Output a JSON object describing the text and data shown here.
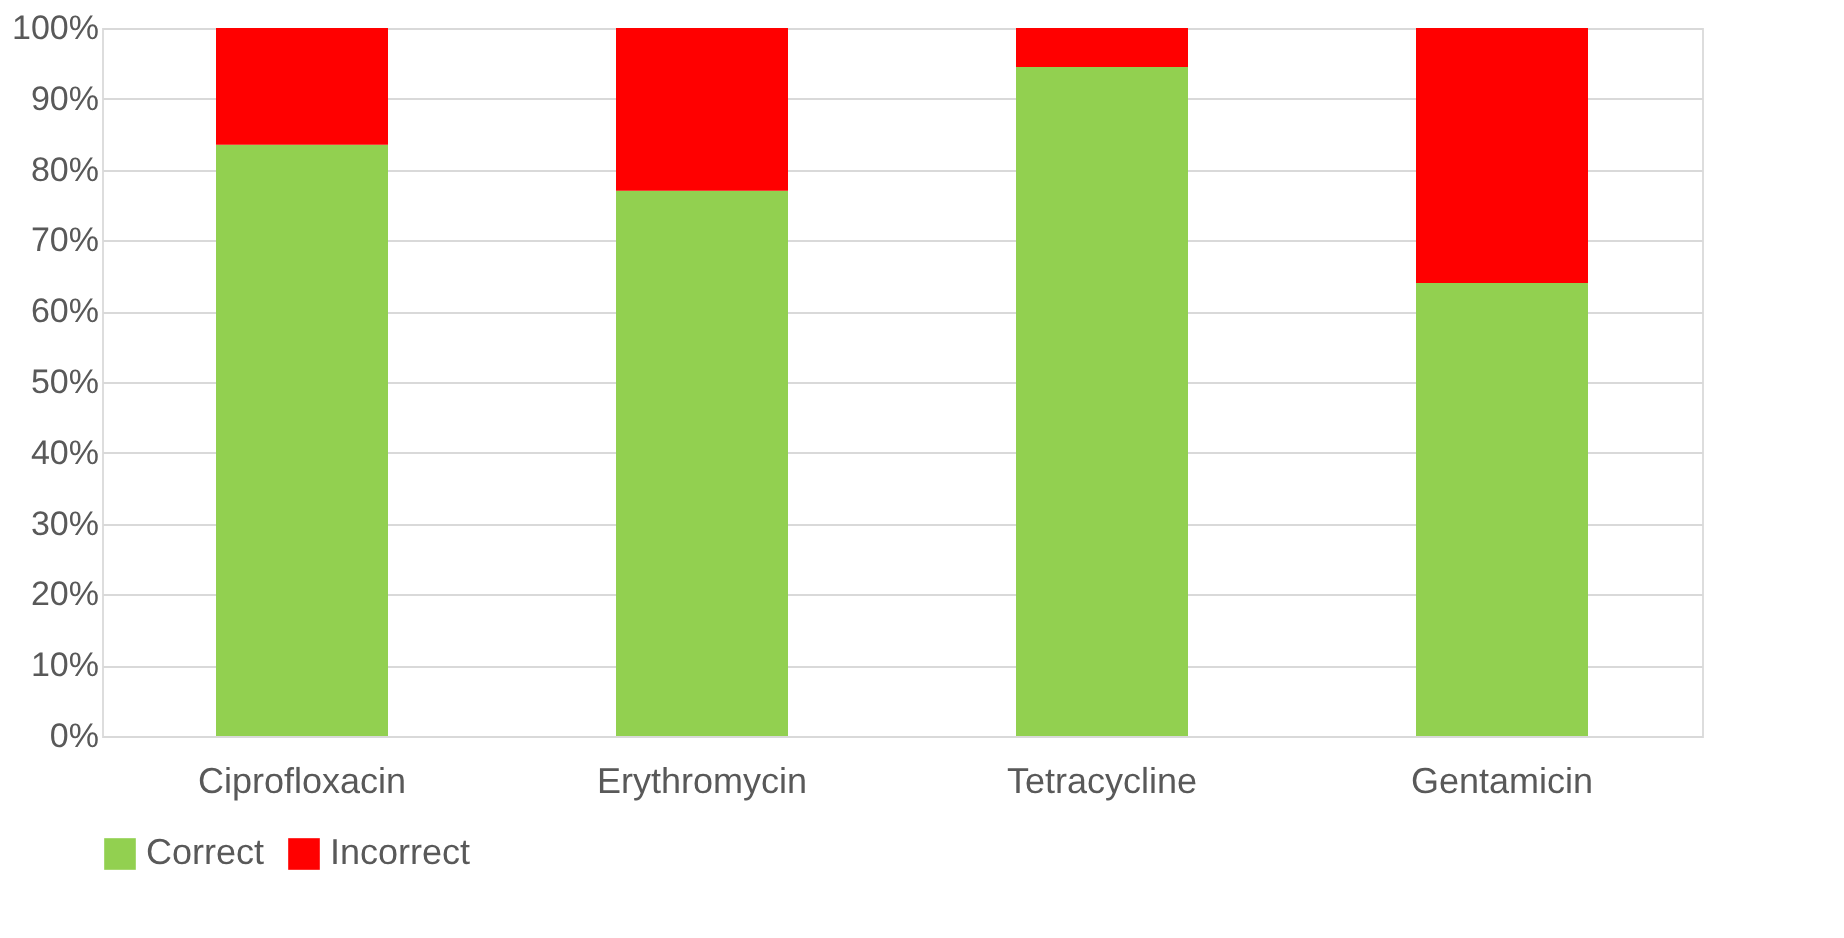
{
  "chart_data": {
    "type": "bar",
    "stacked": true,
    "categories": [
      "Ciprofloxacin",
      "Erythromycin",
      "Tetracycline",
      "Gentamicin"
    ],
    "series": [
      {
        "name": "Correct",
        "color": "#92d050",
        "values": [
          83.5,
          77,
          94.5,
          64
        ]
      },
      {
        "name": "Incorrect",
        "color": "#ff0000",
        "values": [
          16.5,
          23,
          5.5,
          36
        ]
      }
    ],
    "ylim": [
      0,
      100
    ],
    "yticks": [
      {
        "value": 0,
        "label": "0%"
      },
      {
        "value": 10,
        "label": "10%"
      },
      {
        "value": 20,
        "label": "20%"
      },
      {
        "value": 30,
        "label": "30%"
      },
      {
        "value": 40,
        "label": "40%"
      },
      {
        "value": 50,
        "label": "50%"
      },
      {
        "value": 60,
        "label": "60%"
      },
      {
        "value": 70,
        "label": "70%"
      },
      {
        "value": 80,
        "label": "80%"
      },
      {
        "value": 90,
        "label": "90%"
      },
      {
        "value": 100,
        "label": "100%"
      }
    ],
    "grid": "y",
    "legend": "bottom"
  }
}
